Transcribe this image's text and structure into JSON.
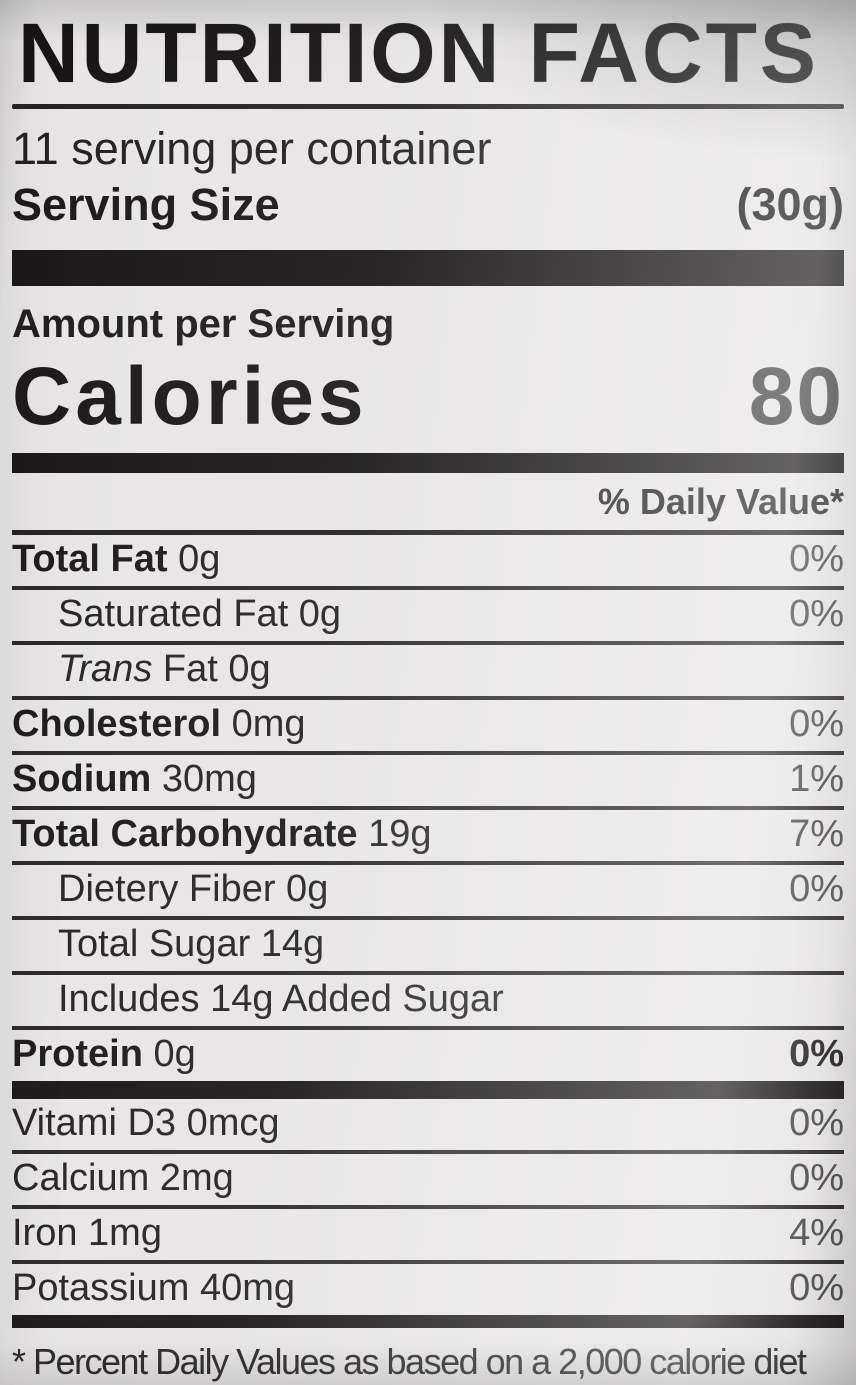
{
  "label": {
    "title": "NUTRITION FACTS",
    "servings_per_container": "11 serving per container",
    "serving_size_label": "Serving Size",
    "serving_size_value": "(30g)",
    "amount_per_serving": "Amount per Serving",
    "calories_label": "Calories",
    "calories_value": "80",
    "daily_value_header": "% Daily Value*",
    "rows": [
      {
        "bold": "Total Fat",
        "italic": "",
        "text": " 0g",
        "percent": "0%",
        "level": 0
      },
      {
        "bold": "",
        "italic": "",
        "text": "Saturated Fat 0g",
        "percent": "0%",
        "level": 1
      },
      {
        "bold": "",
        "italic": "Trans",
        "text": " Fat 0g",
        "percent": "",
        "level": 1
      },
      {
        "bold": "Cholesterol",
        "italic": "",
        "text": " 0mg",
        "percent": "0%",
        "level": 0
      },
      {
        "bold": "Sodium",
        "italic": "",
        "text": " 30mg",
        "percent": "1%",
        "level": 0
      },
      {
        "bold": "Total Carbohydrate",
        "italic": "",
        "text": " 19g",
        "percent": "7%",
        "level": 0
      },
      {
        "bold": "",
        "italic": "",
        "text": "Dietery Fiber 0g",
        "percent": "0%",
        "level": 1
      },
      {
        "bold": "",
        "italic": "",
        "text": "Total Sugar 14g",
        "percent": "",
        "level": 1
      },
      {
        "bold": "",
        "italic": "",
        "text": "Includes 14g Added Sugar",
        "percent": "",
        "level": 1
      },
      {
        "bold": "Protein",
        "italic": "",
        "text": " 0g",
        "percent": "0%",
        "level": 0
      }
    ],
    "micronutrients": [
      {
        "text": "Vitami D3 0mcg",
        "percent": "0%"
      },
      {
        "text": "Calcium 2mg",
        "percent": "0%"
      },
      {
        "text": "Iron 1mg",
        "percent": "4%"
      },
      {
        "text": "Potassium 40mg",
        "percent": "0%"
      }
    ],
    "footnote": "* Percent Daily Values as based on a 2,000 calorie diet",
    "colors": {
      "ink": "#1b1819",
      "paper": "#e7e5e6"
    }
  }
}
